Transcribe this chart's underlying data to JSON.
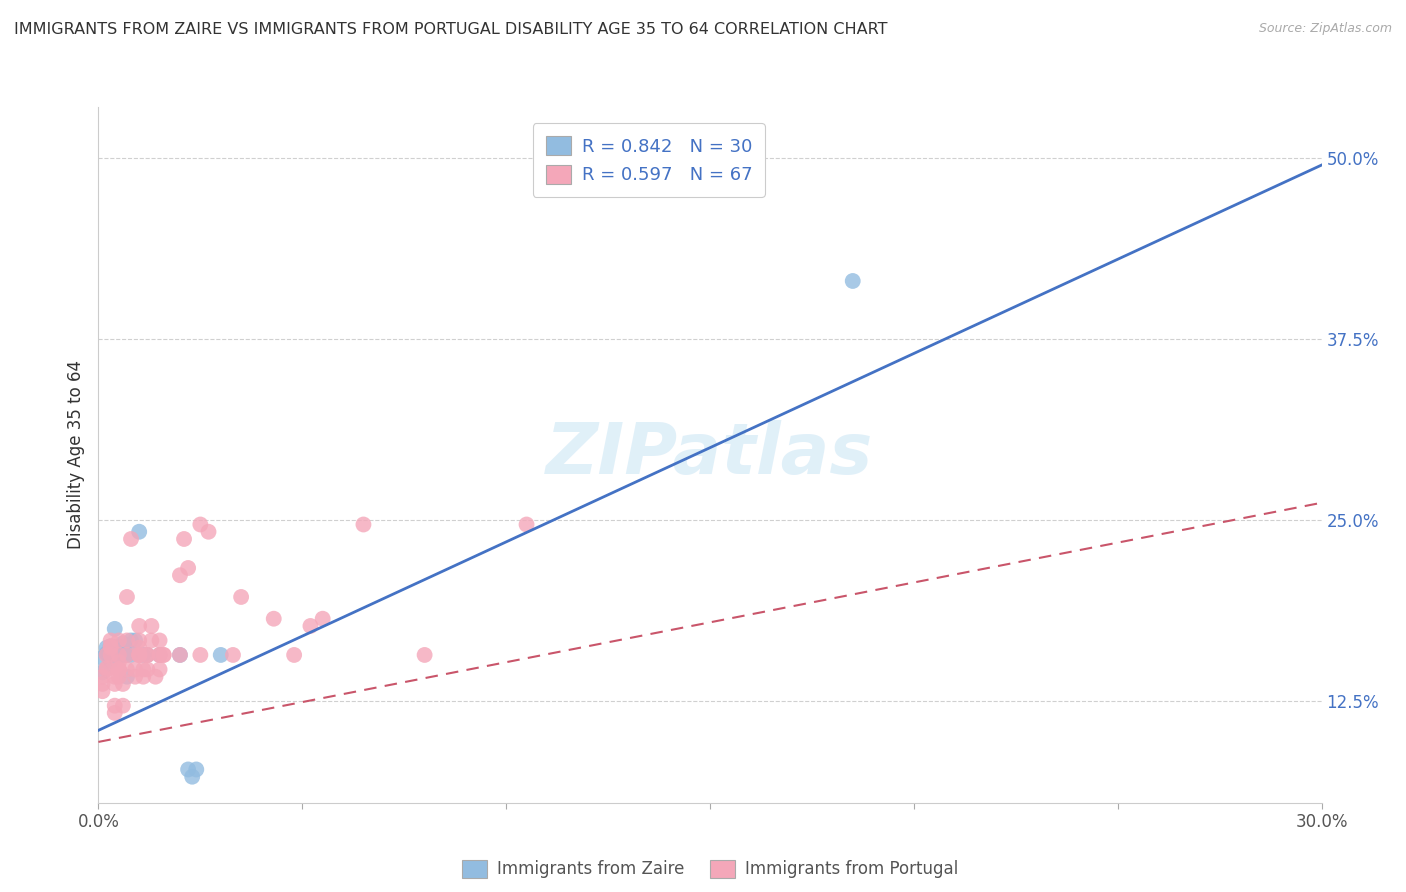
{
  "title": "IMMIGRANTS FROM ZAIRE VS IMMIGRANTS FROM PORTUGAL DISABILITY AGE 35 TO 64 CORRELATION CHART",
  "source": "Source: ZipAtlas.com",
  "ylabel": "Disability Age 35 to 64",
  "xlim": [
    0.0,
    0.3
  ],
  "ylim": [
    0.055,
    0.535
  ],
  "right_yticks": [
    0.125,
    0.25,
    0.375,
    0.5
  ],
  "right_yticklabels": [
    "12.5%",
    "25.0%",
    "37.5%",
    "50.0%"
  ],
  "legend_r1": "R = 0.842",
  "legend_n1": "N = 30",
  "legend_r2": "R = 0.597",
  "legend_n2": "N = 67",
  "legend_label1": "Immigrants from Zaire",
  "legend_label2": "Immigrants from Portugal",
  "zaire_color": "#92bce0",
  "portugal_color": "#f4a7b9",
  "zaire_line_color": "#4472c4",
  "portugal_line_color": "#c9556a",
  "zaire_line": [
    [
      0.0,
      0.105
    ],
    [
      0.3,
      0.495
    ]
  ],
  "portugal_line": [
    [
      0.0,
      0.097
    ],
    [
      0.3,
      0.262
    ]
  ],
  "zaire_scatter": [
    [
      0.001,
      0.155
    ],
    [
      0.001,
      0.145
    ],
    [
      0.002,
      0.162
    ],
    [
      0.002,
      0.158
    ],
    [
      0.003,
      0.157
    ],
    [
      0.003,
      0.163
    ],
    [
      0.003,
      0.153
    ],
    [
      0.004,
      0.175
    ],
    [
      0.004,
      0.162
    ],
    [
      0.004,
      0.157
    ],
    [
      0.005,
      0.157
    ],
    [
      0.005,
      0.163
    ],
    [
      0.005,
      0.16
    ],
    [
      0.006,
      0.165
    ],
    [
      0.006,
      0.157
    ],
    [
      0.007,
      0.157
    ],
    [
      0.007,
      0.142
    ],
    [
      0.008,
      0.167
    ],
    [
      0.008,
      0.157
    ],
    [
      0.009,
      0.167
    ],
    [
      0.01,
      0.242
    ],
    [
      0.011,
      0.157
    ],
    [
      0.012,
      0.157
    ],
    [
      0.015,
      0.157
    ],
    [
      0.02,
      0.157
    ],
    [
      0.022,
      0.078
    ],
    [
      0.023,
      0.073
    ],
    [
      0.024,
      0.078
    ],
    [
      0.03,
      0.157
    ],
    [
      0.185,
      0.415
    ]
  ],
  "portugal_scatter": [
    [
      0.001,
      0.132
    ],
    [
      0.001,
      0.137
    ],
    [
      0.001,
      0.142
    ],
    [
      0.002,
      0.147
    ],
    [
      0.002,
      0.148
    ],
    [
      0.002,
      0.157
    ],
    [
      0.003,
      0.157
    ],
    [
      0.003,
      0.162
    ],
    [
      0.003,
      0.163
    ],
    [
      0.003,
      0.167
    ],
    [
      0.004,
      0.117
    ],
    [
      0.004,
      0.122
    ],
    [
      0.004,
      0.137
    ],
    [
      0.004,
      0.142
    ],
    [
      0.005,
      0.142
    ],
    [
      0.005,
      0.147
    ],
    [
      0.005,
      0.147
    ],
    [
      0.005,
      0.147
    ],
    [
      0.005,
      0.147
    ],
    [
      0.005,
      0.152
    ],
    [
      0.005,
      0.157
    ],
    [
      0.005,
      0.167
    ],
    [
      0.006,
      0.122
    ],
    [
      0.006,
      0.137
    ],
    [
      0.007,
      0.147
    ],
    [
      0.007,
      0.157
    ],
    [
      0.007,
      0.167
    ],
    [
      0.007,
      0.197
    ],
    [
      0.008,
      0.237
    ],
    [
      0.009,
      0.142
    ],
    [
      0.009,
      0.147
    ],
    [
      0.01,
      0.157
    ],
    [
      0.01,
      0.157
    ],
    [
      0.01,
      0.157
    ],
    [
      0.01,
      0.162
    ],
    [
      0.01,
      0.167
    ],
    [
      0.01,
      0.177
    ],
    [
      0.011,
      0.142
    ],
    [
      0.011,
      0.147
    ],
    [
      0.012,
      0.147
    ],
    [
      0.012,
      0.157
    ],
    [
      0.012,
      0.157
    ],
    [
      0.013,
      0.167
    ],
    [
      0.013,
      0.177
    ],
    [
      0.014,
      0.142
    ],
    [
      0.015,
      0.147
    ],
    [
      0.015,
      0.157
    ],
    [
      0.015,
      0.157
    ],
    [
      0.015,
      0.167
    ],
    [
      0.016,
      0.157
    ],
    [
      0.016,
      0.157
    ],
    [
      0.02,
      0.212
    ],
    [
      0.02,
      0.157
    ],
    [
      0.021,
      0.237
    ],
    [
      0.022,
      0.217
    ],
    [
      0.025,
      0.247
    ],
    [
      0.025,
      0.157
    ],
    [
      0.027,
      0.242
    ],
    [
      0.033,
      0.157
    ],
    [
      0.035,
      0.197
    ],
    [
      0.043,
      0.182
    ],
    [
      0.048,
      0.157
    ],
    [
      0.052,
      0.177
    ],
    [
      0.055,
      0.182
    ],
    [
      0.065,
      0.247
    ],
    [
      0.08,
      0.157
    ],
    [
      0.105,
      0.247
    ]
  ],
  "watermark_text": "ZIPatlas",
  "background_color": "#ffffff",
  "grid_color": "#d0d0d0",
  "xtick_labels_show": [
    "0.0%",
    "30.0%"
  ],
  "x_tick_positions": [
    0.0,
    0.05,
    0.1,
    0.15,
    0.2,
    0.25,
    0.3
  ]
}
